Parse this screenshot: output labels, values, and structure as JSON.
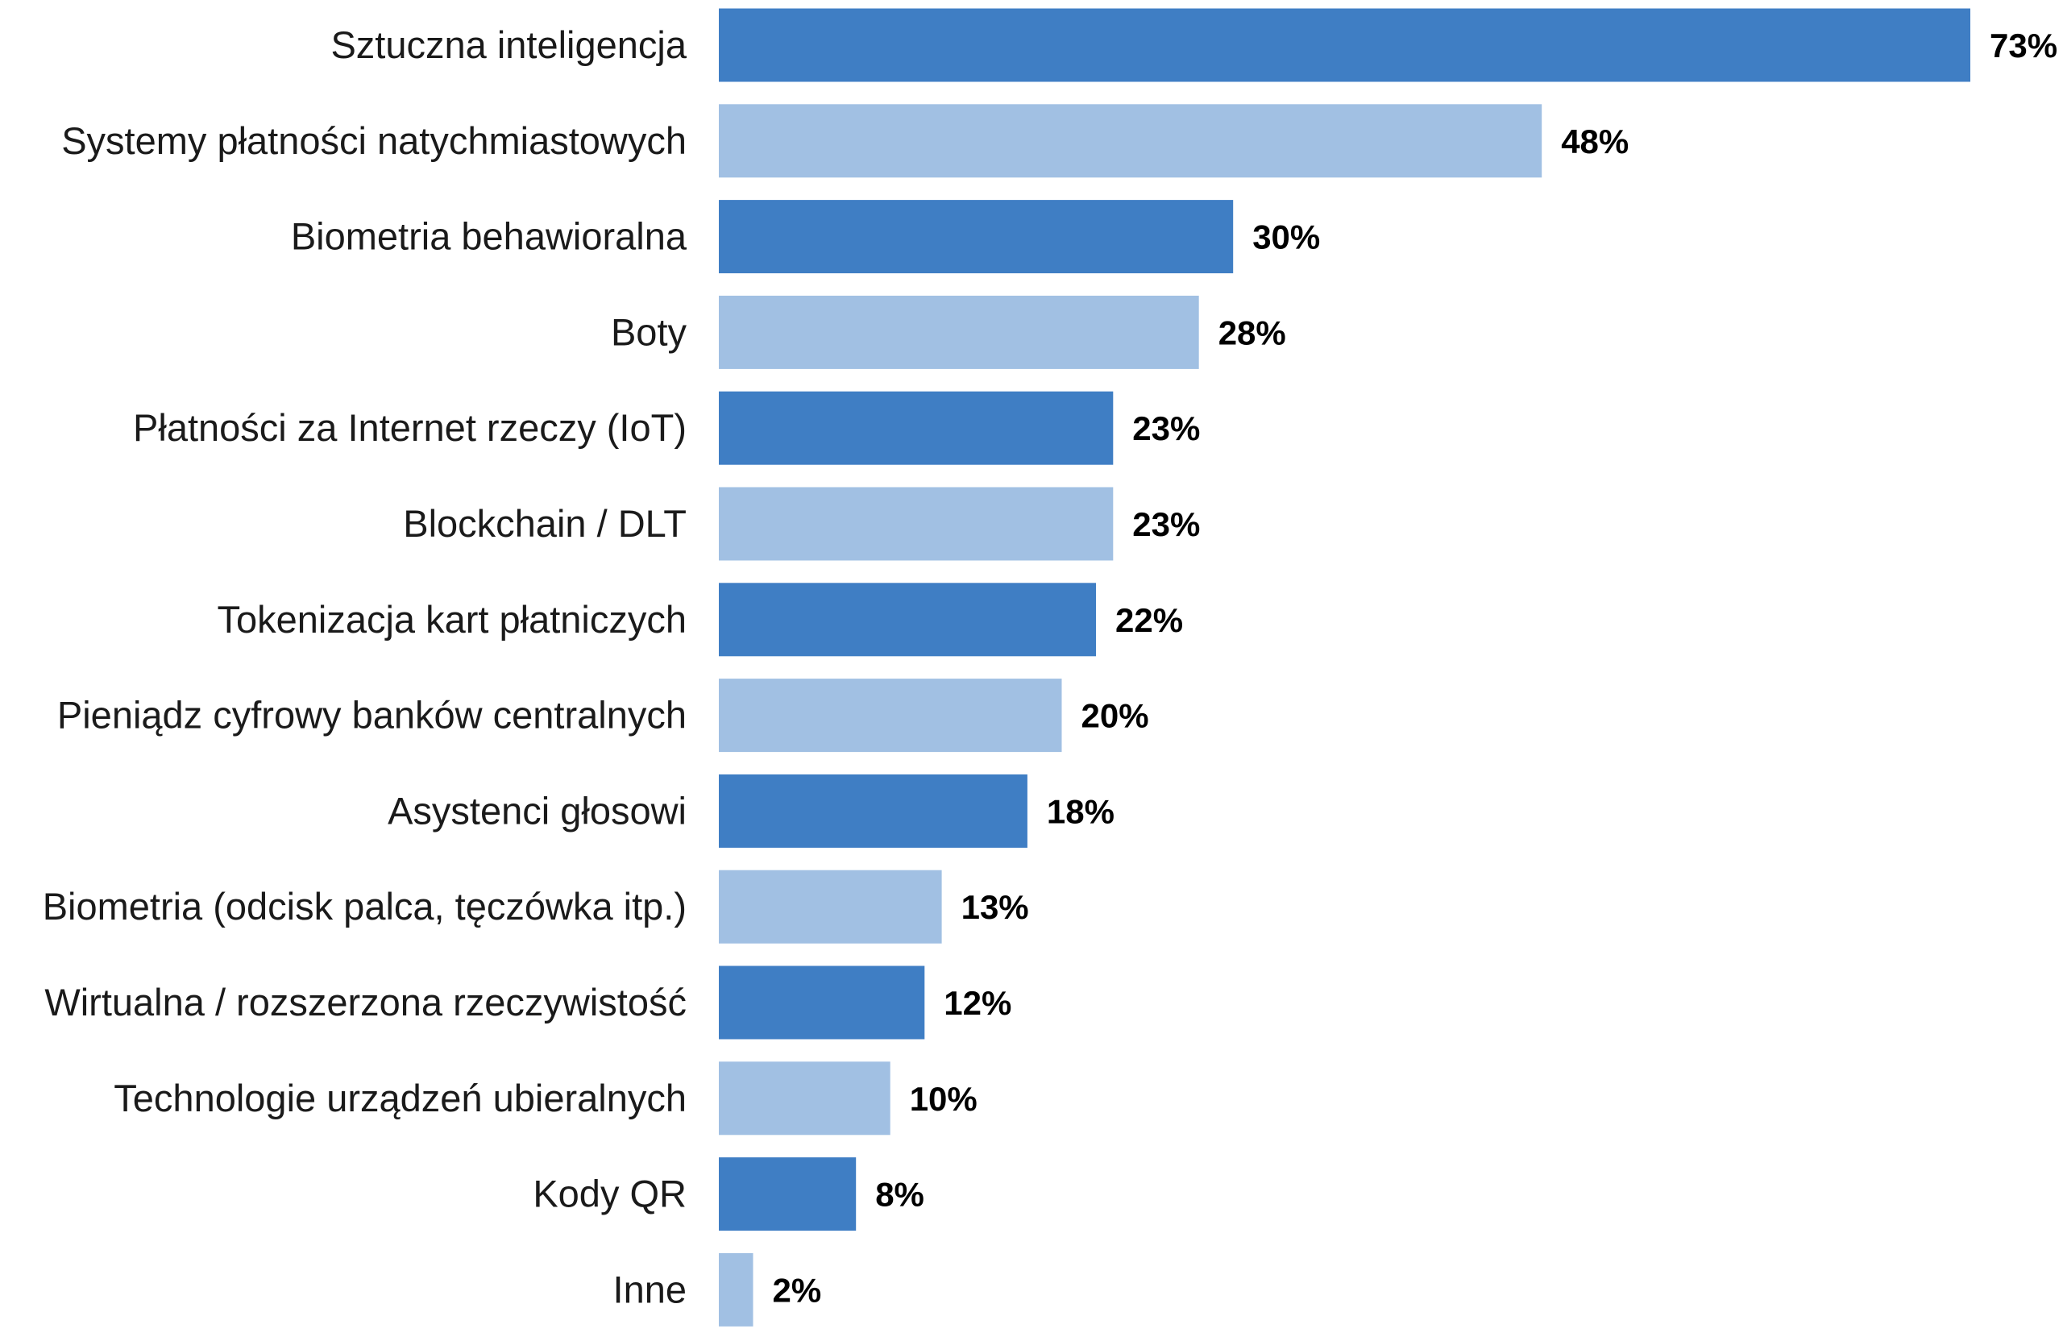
{
  "chart_data": {
    "type": "bar",
    "orientation": "horizontal",
    "categories": [
      "Sztuczna inteligencja",
      "Systemy płatności natychmiastowych",
      "Biometria behawioralna",
      "Boty",
      "Płatności za Internet rzeczy (IoT)",
      "Blockchain / DLT",
      "Tokenizacja kart płatniczych",
      "Pieniądz cyfrowy banków centralnych",
      "Asystenci głosowi",
      "Biometria (odcisk palca, tęczówka itp.)",
      "Wirtualna / rozszerzona rzeczywistość",
      "Technologie urządzeń ubieralnych",
      "Kody QR",
      "Inne"
    ],
    "values": [
      73,
      48,
      30,
      28,
      23,
      23,
      22,
      20,
      18,
      13,
      12,
      10,
      8,
      2
    ],
    "value_labels": [
      "73%",
      "48%",
      "30%",
      "28%",
      "23%",
      "23%",
      "22%",
      "20%",
      "18%",
      "13%",
      "12%",
      "10%",
      "8%",
      "2%"
    ],
    "xlim": [
      0,
      73
    ],
    "grid": false,
    "legend": "none",
    "colors": {
      "primary": "#3f7ec4",
      "secondary": "#a1c0e3"
    }
  }
}
